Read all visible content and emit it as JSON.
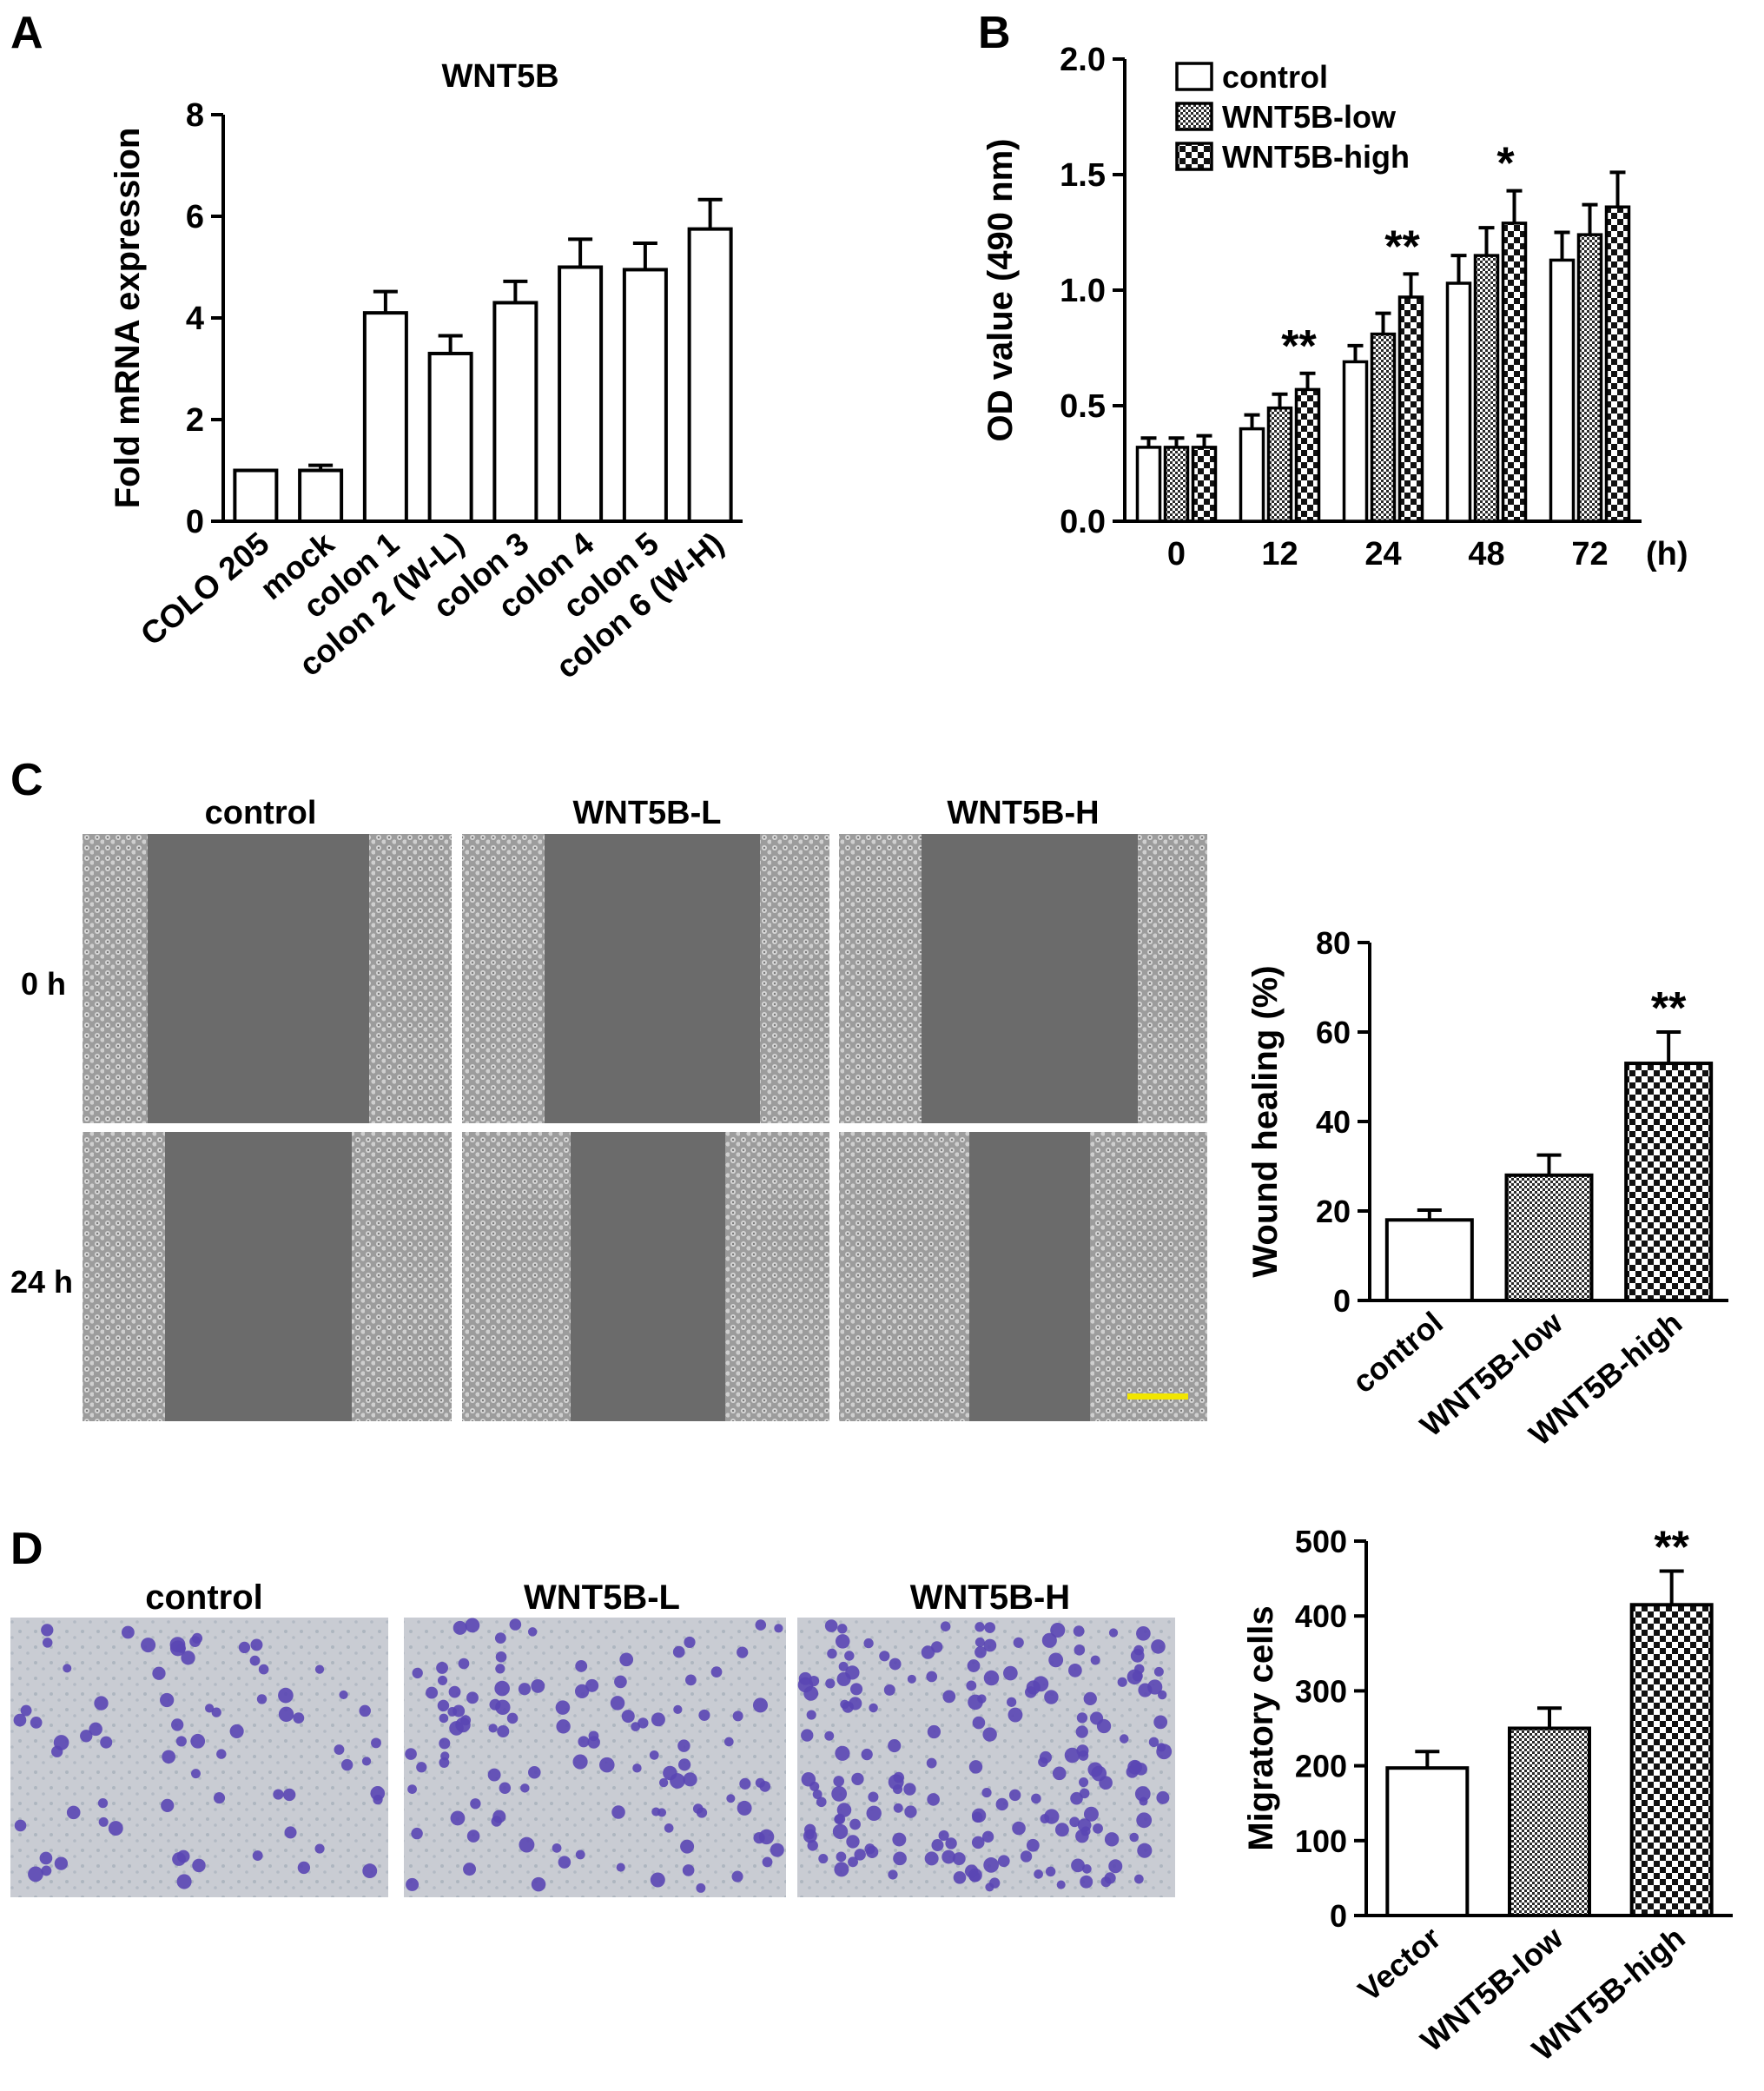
{
  "figure": {
    "panel_letters": [
      "A",
      "B",
      "C",
      "D"
    ],
    "panel_c": {
      "column_titles": [
        "control",
        "WNT5B-L",
        "WNT5B-H"
      ],
      "row_labels": [
        "0 h",
        "24 h"
      ]
    },
    "panel_d": {
      "column_titles": [
        "control",
        "WNT5B-L",
        "WNT5B-H"
      ]
    },
    "colors": {
      "axis": "#000000",
      "bar_fill": "#ffffff",
      "microscopy_bg": "#6b6b6b",
      "cell_layer": "#b9b9b9",
      "stain_bg": "#c9ccd3",
      "stain_cell": "#5a46b4",
      "scale_bar": "#f2e600"
    }
  },
  "chart_data": [
    {
      "panel": "A",
      "type": "bar",
      "title": "WNT5B",
      "ylabel": "Fold mRNA expression",
      "xlabel": "",
      "ylim": [
        0,
        8
      ],
      "yticks": [
        "0",
        "2",
        "4",
        "6",
        "8"
      ],
      "categories": [
        "COLO 205",
        "mock",
        "colon 1",
        "colon 2 (W-L)",
        "colon 3",
        "colon 4",
        "colon 5",
        "colon 6 (W-H)"
      ],
      "values": [
        1.0,
        1.0,
        4.1,
        3.3,
        4.3,
        5.0,
        4.95,
        5.75
      ],
      "errors": [
        0,
        0.1,
        0.42,
        0.35,
        0.42,
        0.55,
        0.52,
        0.58
      ]
    },
    {
      "panel": "B",
      "type": "bar",
      "ylabel": "OD value (490 nm)",
      "xlabel": "(h)",
      "ylim": [
        0,
        2.0
      ],
      "yticks": [
        "0.0",
        "0.5",
        "1.0",
        "1.5",
        "2.0"
      ],
      "categories": [
        "0",
        "12",
        "24",
        "48",
        "72"
      ],
      "legend": "top-left",
      "series": [
        {
          "name": "control",
          "pattern": "white",
          "values": [
            0.32,
            0.4,
            0.69,
            1.03,
            1.13
          ],
          "errors": [
            0.04,
            0.06,
            0.07,
            0.12,
            0.12
          ]
        },
        {
          "name": "WNT5B-low",
          "pattern": "dense",
          "values": [
            0.32,
            0.49,
            0.81,
            1.15,
            1.24
          ],
          "errors": [
            0.04,
            0.06,
            0.09,
            0.12,
            0.13
          ]
        },
        {
          "name": "WNT5B-high",
          "pattern": "checker",
          "values": [
            0.32,
            0.57,
            0.97,
            1.29,
            1.36
          ],
          "errors": [
            0.05,
            0.07,
            0.1,
            0.14,
            0.15
          ]
        }
      ],
      "annotations": [
        {
          "category": "12",
          "series": "WNT5B-high",
          "text": "**"
        },
        {
          "category": "24",
          "series": "WNT5B-high",
          "text": "**"
        },
        {
          "category": "48",
          "series": "WNT5B-high",
          "text": "*"
        }
      ]
    },
    {
      "panel": "C",
      "type": "bar",
      "ylabel": "Wound healing (%)",
      "xlabel": "",
      "ylim": [
        0,
        80
      ],
      "yticks": [
        "0",
        "20",
        "40",
        "60",
        "80"
      ],
      "categories": [
        "control",
        "WNT5B-low",
        "WNT5B-high"
      ],
      "values": [
        18,
        28,
        53
      ],
      "errors": [
        2.2,
        4.5,
        7
      ],
      "patterns": [
        "white",
        "dense",
        "checker"
      ],
      "annotations": [
        {
          "category": "WNT5B-high",
          "text": "**"
        }
      ]
    },
    {
      "panel": "D",
      "type": "bar",
      "ylabel": "Migratory cells",
      "xlabel": "",
      "ylim": [
        0,
        500
      ],
      "yticks": [
        "0",
        "100",
        "200",
        "300",
        "400",
        "500"
      ],
      "categories": [
        "Vector",
        "WNT5B-low",
        "WNT5B-high"
      ],
      "values": [
        197,
        250,
        415
      ],
      "errors": [
        22,
        27,
        45
      ],
      "patterns": [
        "white",
        "dense",
        "checker"
      ],
      "annotations": [
        {
          "category": "WNT5B-high",
          "text": "**"
        }
      ]
    }
  ]
}
